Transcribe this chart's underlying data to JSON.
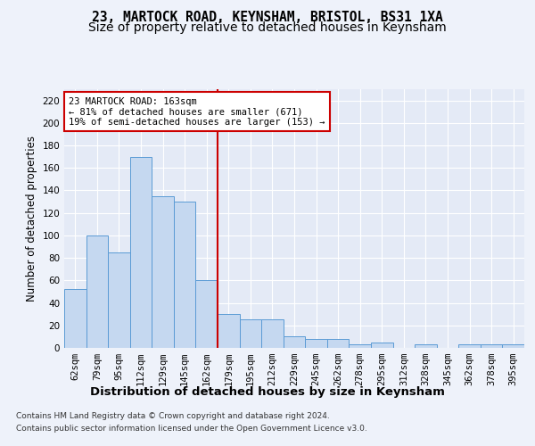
{
  "title1": "23, MARTOCK ROAD, KEYNSHAM, BRISTOL, BS31 1XA",
  "title2": "Size of property relative to detached houses in Keynsham",
  "xlabel": "Distribution of detached houses by size in Keynsham",
  "ylabel": "Number of detached properties",
  "bin_labels": [
    "62sqm",
    "79sqm",
    "95sqm",
    "112sqm",
    "129sqm",
    "145sqm",
    "162sqm",
    "179sqm",
    "195sqm",
    "212sqm",
    "229sqm",
    "245sqm",
    "262sqm",
    "278sqm",
    "295sqm",
    "312sqm",
    "328sqm",
    "345sqm",
    "362sqm",
    "378sqm",
    "395sqm"
  ],
  "bar_values": [
    52,
    100,
    85,
    170,
    135,
    130,
    60,
    30,
    25,
    25,
    10,
    8,
    8,
    3,
    5,
    0,
    3,
    0,
    3,
    3,
    3
  ],
  "bar_color": "#c5d8f0",
  "bar_edge_color": "#5b9bd5",
  "property_line_bin": 6,
  "property_line_color": "#cc0000",
  "annotation_line1": "23 MARTOCK ROAD: 163sqm",
  "annotation_line2": "← 81% of detached houses are smaller (671)",
  "annotation_line3": "19% of semi-detached houses are larger (153) →",
  "annotation_box_color": "#ffffff",
  "annotation_box_edge": "#cc0000",
  "ylim": [
    0,
    230
  ],
  "yticks": [
    0,
    20,
    40,
    60,
    80,
    100,
    120,
    140,
    160,
    180,
    200,
    220
  ],
  "footnote1": "Contains HM Land Registry data © Crown copyright and database right 2024.",
  "footnote2": "Contains public sector information licensed under the Open Government Licence v3.0.",
  "background_color": "#eef2fa",
  "plot_bg_color": "#e4eaf6",
  "grid_color": "#ffffff",
  "title1_fontsize": 10.5,
  "title2_fontsize": 10,
  "tick_fontsize": 7.5,
  "xlabel_fontsize": 9.5,
  "ylabel_fontsize": 8.5,
  "annotation_fontsize": 7.5
}
